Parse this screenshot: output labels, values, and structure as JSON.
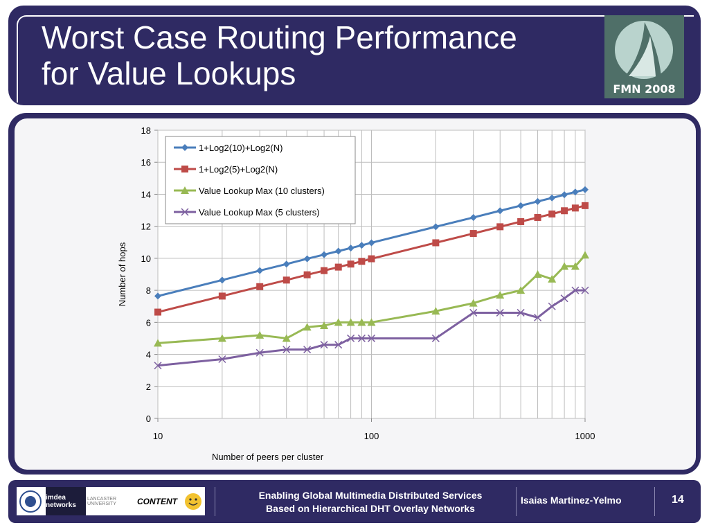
{
  "slide": {
    "title_line1": "Worst Case Routing Performance",
    "title_line2": "for Value Lookups",
    "logo_text": "FMN 2008",
    "footer_line1": "Enabling Global Multimedia Distributed Services",
    "footer_line2": "Based on Hierarchical DHT Overlay Networks",
    "author": "Isaias Martinez-Yelmo",
    "page_number": "14",
    "footer_logos": [
      "imdea networks",
      "LANCASTER UNIVERSITY",
      "CONTENT"
    ]
  },
  "chart_data": {
    "type": "line",
    "xscale": "log",
    "xlabel": "Number of peers per cluster",
    "ylabel": "Number of hops",
    "xlim": [
      10,
      1000
    ],
    "ylim": [
      0,
      18
    ],
    "xticks": [
      "10",
      "100",
      "1000"
    ],
    "yticks": [
      "0",
      "2",
      "4",
      "6",
      "8",
      "10",
      "12",
      "14",
      "16",
      "18"
    ],
    "grid": true,
    "legend_position": "top-left",
    "x": [
      10,
      20,
      30,
      40,
      50,
      60,
      70,
      80,
      90,
      100,
      200,
      300,
      400,
      500,
      600,
      700,
      800,
      900,
      1000
    ],
    "series": [
      {
        "name": "1+Log2(10)+Log2(N)",
        "color": "#4a7ebb",
        "marker": "diamond",
        "values": [
          7.64,
          8.64,
          9.23,
          9.64,
          9.97,
          10.23,
          10.45,
          10.64,
          10.81,
          10.97,
          11.97,
          12.55,
          12.97,
          13.29,
          13.55,
          13.77,
          13.97,
          14.14,
          14.29
        ]
      },
      {
        "name": "1+Log2(5)+Log2(N)",
        "color": "#be4b48",
        "marker": "square",
        "values": [
          6.64,
          7.64,
          8.23,
          8.64,
          8.97,
          9.23,
          9.45,
          9.64,
          9.81,
          9.97,
          10.97,
          11.55,
          11.97,
          12.29,
          12.55,
          12.77,
          12.97,
          13.14,
          13.29
        ]
      },
      {
        "name": "Value Lookup Max (10 clusters)",
        "color": "#98b954",
        "marker": "triangle",
        "values": [
          4.7,
          5.0,
          5.2,
          5.0,
          5.7,
          5.8,
          6.0,
          6.0,
          6.0,
          6.0,
          6.7,
          7.2,
          7.7,
          8.0,
          9.0,
          8.7,
          9.5,
          9.5,
          10.2
        ]
      },
      {
        "name": "Value Lookup Max (5 clusters)",
        "color": "#7d60a0",
        "marker": "x",
        "values": [
          3.3,
          3.7,
          4.1,
          4.3,
          4.3,
          4.6,
          4.6,
          5.0,
          5.0,
          5.0,
          5.0,
          6.6,
          6.6,
          6.6,
          6.3,
          7.0,
          7.5,
          8.0,
          8.0
        ]
      }
    ]
  }
}
